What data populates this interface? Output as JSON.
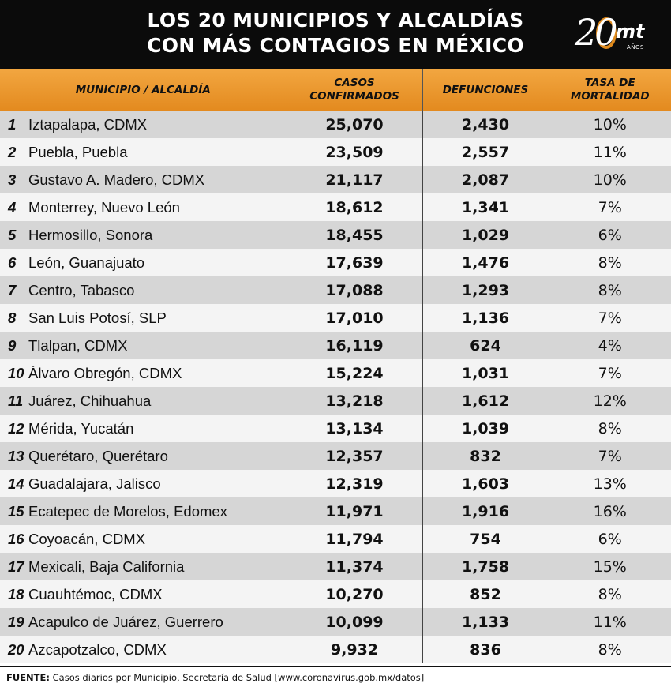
{
  "title_line1": "LOS 20 MUNICIPIOS Y ALCALDÍAS",
  "title_line2": "CON MÁS CONTAGIOS EN MÉXICO",
  "logo": {
    "number": "20",
    "brand": "mt",
    "sub": "AÑOS",
    "icon": "mediotiempo-20-anos-logo",
    "ring_color": "#e08a1c"
  },
  "colors": {
    "header_bg": "#0b0b0b",
    "column_header": "#e9962b",
    "row_dark": "#d6d6d6",
    "row_light": "#f4f4f4"
  },
  "columns": {
    "municipio": "MUNICIPIO / ALCALDÍA",
    "casos_1": "CASOS",
    "casos_2": "CONFIRMADOS",
    "defunciones": "DEFUNCIONES",
    "tasa_1": "TASA DE",
    "tasa_2": "MORTALIDAD"
  },
  "footer": {
    "label": "FUENTE:",
    "text": " Casos diarios por Municipio, Secretaría de Salud [www.coronavirus.gob.mx/datos]"
  },
  "chart_data": {
    "type": "table",
    "title": "LOS 20 MUNICIPIOS Y ALCALDÍAS CON MÁS CONTAGIOS EN MÉXICO",
    "headers": [
      "MUNICIPIO / ALCALDÍA",
      "CASOS CONFIRMADOS",
      "DEFUNCIONES",
      "TASA DE MORTALIDAD"
    ],
    "rows": [
      {
        "rank": "1",
        "municipio": "Iztapalapa, CDMX",
        "casos": "25,070",
        "defunciones": "2,430",
        "tasa": "10%"
      },
      {
        "rank": "2",
        "municipio": "Puebla, Puebla",
        "casos": "23,509",
        "defunciones": "2,557",
        "tasa": "11%"
      },
      {
        "rank": "3",
        "municipio": "Gustavo A. Madero, CDMX",
        "casos": "21,117",
        "defunciones": "2,087",
        "tasa": "10%"
      },
      {
        "rank": "4",
        "municipio": "Monterrey, Nuevo León",
        "casos": "18,612",
        "defunciones": "1,341",
        "tasa": "7%"
      },
      {
        "rank": "5",
        "municipio": "Hermosillo, Sonora",
        "casos": "18,455",
        "defunciones": "1,029",
        "tasa": "6%"
      },
      {
        "rank": "6",
        "municipio": "León, Guanajuato",
        "casos": "17,639",
        "defunciones": "1,476",
        "tasa": "8%"
      },
      {
        "rank": "7",
        "municipio": "Centro, Tabasco",
        "casos": "17,088",
        "defunciones": "1,293",
        "tasa": "8%"
      },
      {
        "rank": "8",
        "municipio": "San Luis Potosí, SLP",
        "casos": "17,010",
        "defunciones": "1,136",
        "tasa": "7%"
      },
      {
        "rank": "9",
        "municipio": "Tlalpan, CDMX",
        "casos": "16,119",
        "defunciones": "624",
        "tasa": "4%"
      },
      {
        "rank": "10",
        "municipio": "Álvaro Obregón, CDMX",
        "casos": "15,224",
        "defunciones": "1,031",
        "tasa": "7%"
      },
      {
        "rank": "11",
        "municipio": "Juárez, Chihuahua",
        "casos": "13,218",
        "defunciones": "1,612",
        "tasa": "12%"
      },
      {
        "rank": "12",
        "municipio": "Mérida, Yucatán",
        "casos": "13,134",
        "defunciones": "1,039",
        "tasa": "8%"
      },
      {
        "rank": "13",
        "municipio": "Querétaro, Querétaro",
        "casos": "12,357",
        "defunciones": "832",
        "tasa": "7%"
      },
      {
        "rank": "14",
        "municipio": "Guadalajara, Jalisco",
        "casos": "12,319",
        "defunciones": "1,603",
        "tasa": "13%"
      },
      {
        "rank": "15",
        "municipio": "Ecatepec de Morelos, Edomex",
        "casos": "11,971",
        "defunciones": "1,916",
        "tasa": "16%"
      },
      {
        "rank": "16",
        "municipio": "Coyoacán, CDMX",
        "casos": "11,794",
        "defunciones": "754",
        "tasa": "6%"
      },
      {
        "rank": "17",
        "municipio": "Mexicali, Baja California",
        "casos": "11,374",
        "defunciones": "1,758",
        "tasa": "15%"
      },
      {
        "rank": "18",
        "municipio": "Cuauhtémoc, CDMX",
        "casos": "10,270",
        "defunciones": "852",
        "tasa": "8%"
      },
      {
        "rank": "19",
        "municipio": "Acapulco de Juárez, Guerrero",
        "casos": "10,099",
        "defunciones": "1,133",
        "tasa": "11%"
      },
      {
        "rank": "20",
        "municipio": "Azcapotzalco, CDMX",
        "casos": "9,932",
        "defunciones": "836",
        "tasa": "8%"
      }
    ]
  }
}
